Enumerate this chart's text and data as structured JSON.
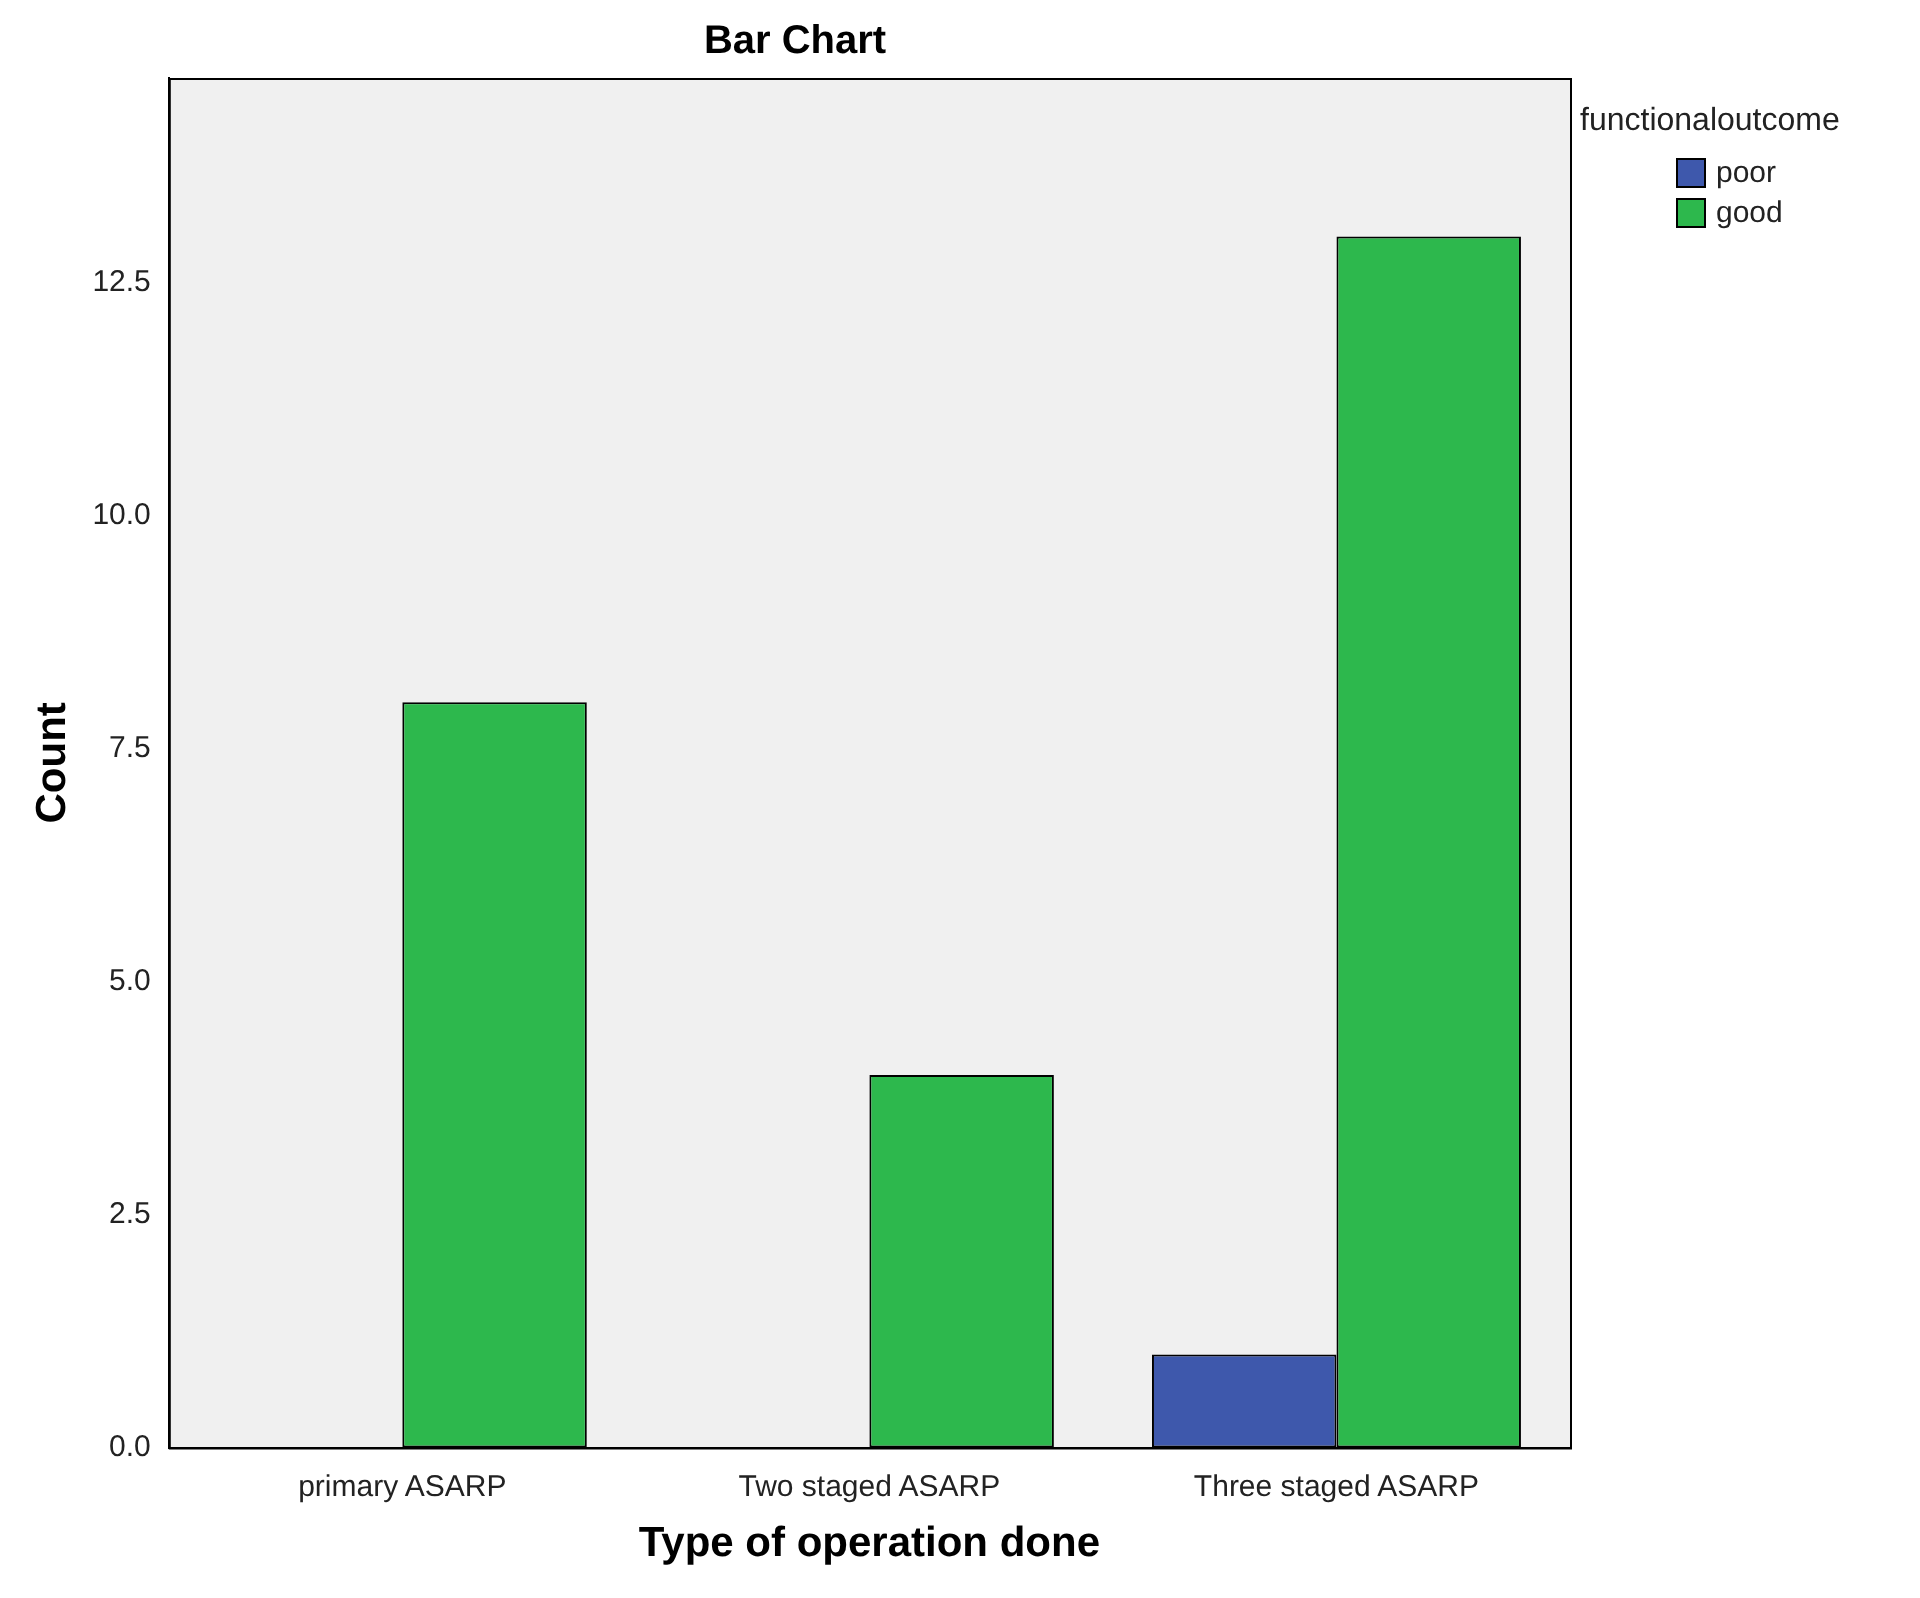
{
  "chart_data": {
    "type": "bar",
    "title": "Bar Chart",
    "xlabel": "Type of operation done",
    "ylabel": "Count",
    "legend_title": "functionaloutcome",
    "categories": [
      "primary ASARP",
      "Two staged ASARP",
      "Three staged ASARP"
    ],
    "series": [
      {
        "name": "poor",
        "color": "#3e58ac",
        "values": [
          0,
          0,
          1
        ]
      },
      {
        "name": "good",
        "color": "#2db84d",
        "values": [
          8,
          4,
          13
        ]
      }
    ],
    "ylim": [
      0,
      14.7
    ],
    "yticks": [
      {
        "value": 0,
        "label": "0.0"
      },
      2.5,
      {
        "value": 5,
        "label": "5.0"
      },
      7.5,
      {
        "value": 10,
        "label": "10.0"
      },
      12.5
    ],
    "grid": false,
    "legend": "top right"
  }
}
